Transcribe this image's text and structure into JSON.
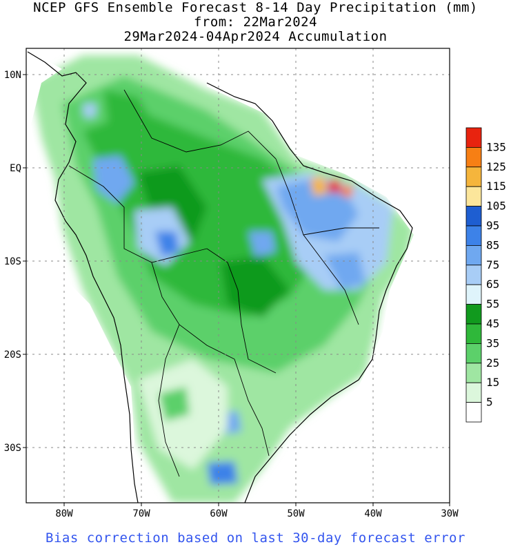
{
  "header": {
    "title": "NCEP GFS Ensemble Forecast 8-14 Day Precipitation (mm)",
    "subtitle_from": "from: 22Mar2024",
    "subtitle_period": "29Mar2024-04Apr2024 Accumulation"
  },
  "axes": {
    "lat_labels": [
      "10N",
      "EQ",
      "10S",
      "20S",
      "30S"
    ],
    "lon_labels": [
      "80W",
      "70W",
      "60W",
      "50W",
      "40W",
      "30W"
    ]
  },
  "legend": {
    "levels": [
      "135",
      "125",
      "115",
      "105",
      "95",
      "85",
      "75",
      "65",
      "55",
      "45",
      "35",
      "25",
      "15",
      "5"
    ],
    "colors": [
      "#e8230f",
      "#f77f14",
      "#f5b53c",
      "#fce69b",
      "#1e5ed1",
      "#3d82e8",
      "#6fa8f0",
      "#a8cdf6",
      "#dff4fb",
      "#119a1e",
      "#2fb83a",
      "#5cd06a",
      "#9fe6a2",
      "#dcf7dc",
      "#ffffff"
    ]
  },
  "footer": {
    "note": "Bias correction based on last 30-day forecast error"
  }
}
